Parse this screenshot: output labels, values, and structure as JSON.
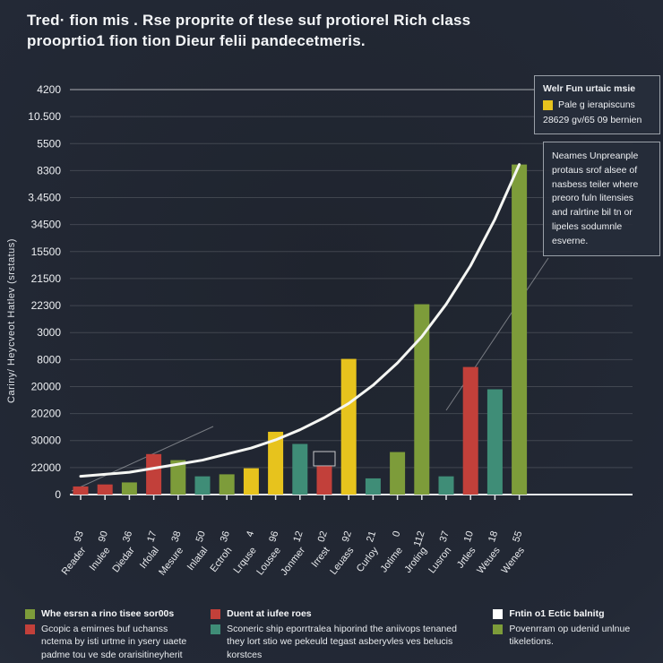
{
  "page": {
    "title": "Tred· fion mis . Rse proprite of tlese suf protiorel Rich class prooprtio1 fion tion Dieur felii pandecetmeris."
  },
  "chart_data": {
    "type": "bar",
    "title": "Tred· fion mis . Rse proprite of tlese suf protiorel Rich class prooprtio1 fion tion Dieur felii pandecetmeris.",
    "xlabel": "",
    "ylabel": "Cariny/ Heycveot Hatlev (srstatus)",
    "ylim": [
      0,
      100
    ],
    "grid": true,
    "legend_position": "right",
    "y_tick_labels": [
      "4200",
      "10.500",
      "5500",
      "8300",
      "3.4500",
      "34500",
      "15500",
      "21500",
      "22300",
      "3000",
      "8000",
      "20000",
      "20200",
      "30000",
      "22000",
      "0"
    ],
    "x_tick_numbers": [
      "93",
      "90",
      "36",
      "17",
      "38",
      "50",
      "36",
      "4",
      "96",
      "12",
      "02",
      "92",
      "21",
      "0",
      "112",
      "37",
      "10",
      "18",
      "55"
    ],
    "categories": [
      "Reader",
      "Inulee",
      "Diedar",
      "Irfolal",
      "Mesure",
      "Inlatal",
      "Ectroh",
      "Lrquse",
      "Lousee",
      "Jonmer",
      "Irrest",
      "Leuass",
      "Curloy",
      "Jotime",
      "Jroting",
      "Lusron",
      "Jrtles",
      "Weues",
      "Wenes"
    ],
    "palette": {
      "red": "#c2403a",
      "green": "#7d9c3a",
      "yellow": "#e7c31d",
      "teal": "#3f8d77",
      "line": "#f5f6f3"
    },
    "series": [
      {
        "name": "bars",
        "type": "bar",
        "values": [
          2,
          2.5,
          3,
          10,
          8.5,
          4.5,
          5,
          6.5,
          15.5,
          12.5,
          7,
          33.5,
          4,
          10.5,
          47,
          4.5,
          31.5,
          26,
          81.5
        ],
        "colors": [
          "red",
          "red",
          "green",
          "red",
          "green",
          "teal",
          "green",
          "yellow",
          "yellow",
          "teal",
          "red",
          "yellow",
          "teal",
          "green",
          "green",
          "teal",
          "red",
          "teal",
          "green"
        ]
      },
      {
        "name": "trend",
        "type": "line",
        "values": [
          4.5,
          5,
          5.5,
          6.5,
          7.5,
          8.5,
          10,
          11.5,
          13.5,
          16,
          19,
          22.5,
          27,
          32.5,
          39,
          47,
          56.5,
          68,
          81.5
        ],
        "color": "#f5f6f3"
      }
    ]
  },
  "legend_box": {
    "title": "Welr Fun urtaic msie",
    "swatch_color": "#e7c31d",
    "item_label": "Pale g ierapiscuns",
    "subtext": "28629 gv/65 09 bernien"
  },
  "annotation_box": {
    "text": "Neames Unpreanple protaus srof alsee of nasbess teiler where preoro fuln litensies and ralrtine bil tn or lipeles sodumnle esverne."
  },
  "bottom_legend": {
    "columns": [
      {
        "items": [
          {
            "color": "#7d9c3a",
            "bold": true,
            "text": "Whe esrsn a rino tisee sor00s"
          },
          {
            "color": "#c2403a",
            "bold": false,
            "text": "Gcopic a emirnes buf uchanss nctema by isti urtme in ysery uaete padme tou ve sde orarisitineyherit"
          }
        ]
      },
      {
        "items": [
          {
            "color": "#c2403a",
            "bold": true,
            "text": "Duent at iufee roes"
          },
          {
            "color": "#3f8d77",
            "bold": false,
            "text": "Sconeric ship eporrtralea hiporind the aniivops tenaned they lort stio we pekeuld tegast asberyvles ves belucis korstces"
          }
        ]
      },
      {
        "items": [
          {
            "color": "#ffffff",
            "bold": true,
            "text": "Fntin o1 Ectic balnitg"
          },
          {
            "color": "#7d9c3a",
            "bold": false,
            "text": "Povenrram op udenid unlnue tikeletions."
          }
        ]
      }
    ]
  }
}
